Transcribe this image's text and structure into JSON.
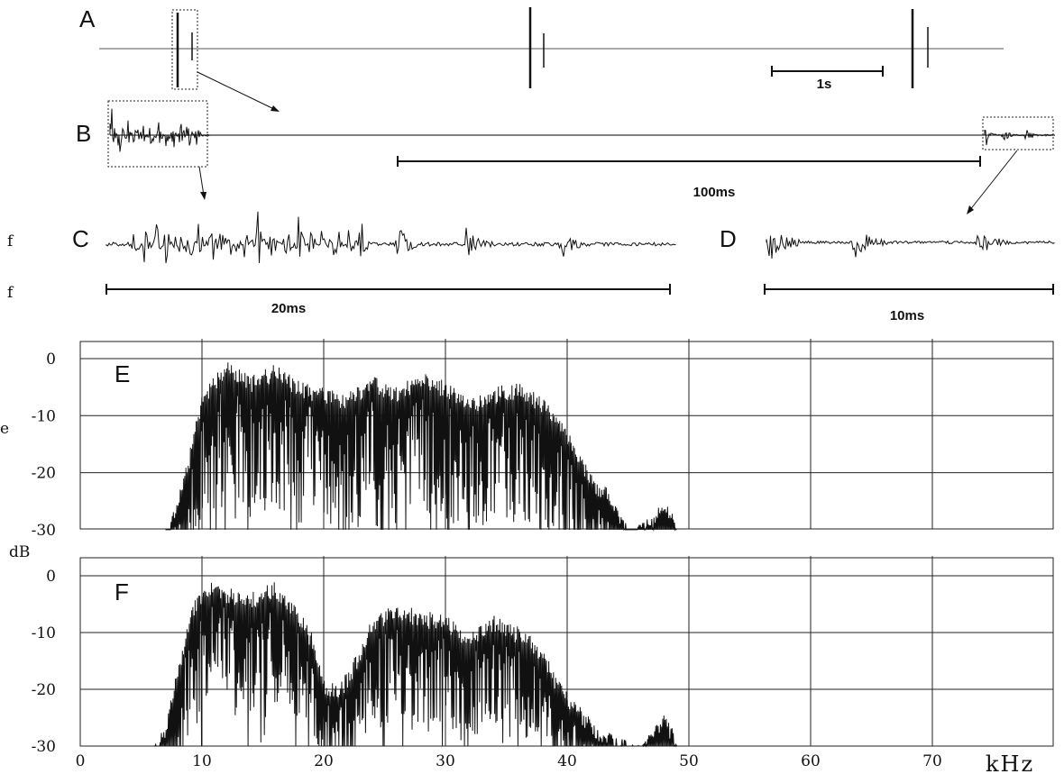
{
  "panels": {
    "A": {
      "label": "A",
      "scale_label": "1s"
    },
    "B": {
      "label": "B",
      "scale_label": "100ms"
    },
    "C": {
      "label": "C",
      "scale_label": "20ms"
    },
    "D": {
      "label": "D",
      "scale_label": "10ms"
    },
    "E": {
      "label": "E"
    },
    "F": {
      "label": "F"
    }
  },
  "side_glyphs": [
    "f",
    "f",
    "e"
  ],
  "chart_data": [
    {
      "panel": "E",
      "type": "line",
      "xlabel": "kHz",
      "ylabel": "dB",
      "xlim": [
        0,
        80
      ],
      "ylim": [
        -30,
        3
      ],
      "x_ticks": [
        0,
        10,
        20,
        30,
        40,
        50,
        60,
        70
      ],
      "y_ticks": [
        0,
        -10,
        -20,
        -30
      ],
      "y_tick_labels": [
        "0",
        "-10",
        "-20",
        "-30"
      ],
      "grid": true,
      "series": [
        {
          "envelope": {
            "x": [
              7,
              8,
              9,
              10,
              11,
              12,
              14,
              16,
              18,
              20,
              22,
              24,
              26,
              28,
              30,
              32,
              34,
              36,
              38,
              40,
              41,
              42,
              43,
              44,
              45,
              46,
              47,
              48,
              49
            ],
            "y": [
              -30,
              -24,
              -16,
              -6,
              -3,
              0,
              -3,
              -1,
              -4,
              -5,
              -6,
              -3,
              -5,
              -2,
              -4,
              -7,
              -5,
              -4,
              -7,
              -12,
              -16,
              -20,
              -22,
              -24,
              -30,
              -29,
              -27,
              -25,
              -28
            ]
          }
        }
      ]
    },
    {
      "panel": "F",
      "type": "line",
      "xlabel": "kHz",
      "ylabel": "dB",
      "xlim": [
        0,
        80
      ],
      "ylim": [
        -30,
        3
      ],
      "x_ticks": [
        0,
        10,
        20,
        30,
        40,
        50,
        60,
        70
      ],
      "x_tick_labels": [
        "0",
        "10",
        "20",
        "30",
        "40",
        "50",
        "60",
        "70"
      ],
      "y_ticks": [
        0,
        -10,
        -20,
        -30
      ],
      "y_tick_labels": [
        "0",
        "-10",
        "-20",
        "-30"
      ],
      "grid": true,
      "series": [
        {
          "envelope": {
            "x": [
              6,
              7,
              8,
              9,
              10,
              11,
              12,
              14,
              16,
              18,
              19,
              20,
              21,
              22,
              24,
              26,
              28,
              30,
              32,
              34,
              36,
              37,
              38,
              39,
              40,
              41,
              42,
              43,
              44,
              46,
              47,
              48,
              49
            ],
            "y": [
              -30,
              -26,
              -16,
              -6,
              -2,
              0,
              -2,
              -3,
              -1,
              -6,
              -10,
              -18,
              -19,
              -17,
              -7,
              -5,
              -6,
              -7,
              -10,
              -7,
              -9,
              -10,
              -13,
              -17,
              -20,
              -23,
              -25,
              -27,
              -28,
              -30,
              -26,
              -24,
              -28
            ]
          }
        }
      ]
    }
  ]
}
